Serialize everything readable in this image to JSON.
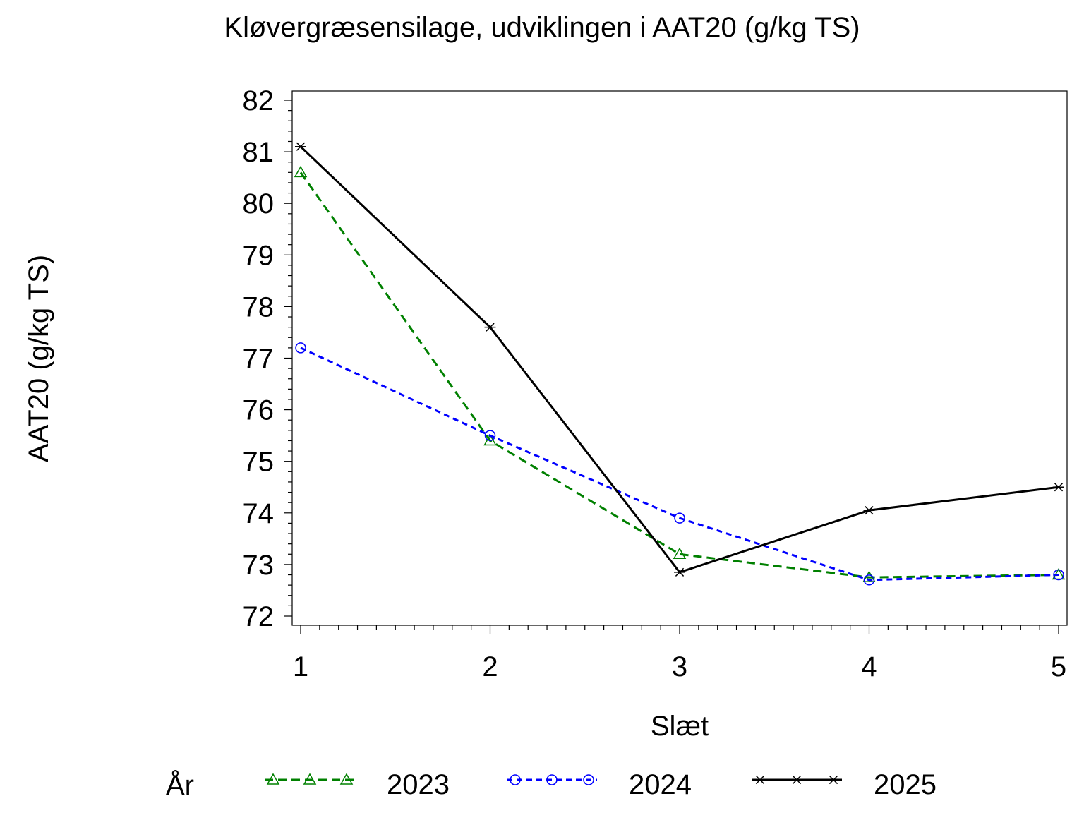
{
  "chart_data": {
    "type": "line",
    "title": "Kløvergræsensilage,  udviklingen  i  AAT20  (g/kg  TS)",
    "xlabel": "Slæt",
    "ylabel": "AAT20  (g/kg  TS)",
    "x": [
      1,
      2,
      3,
      4,
      5
    ],
    "xlim": [
      1,
      5
    ],
    "ylim": [
      72,
      82
    ],
    "yticks": [
      72,
      73,
      74,
      75,
      76,
      77,
      78,
      79,
      80,
      81,
      82
    ],
    "xticks": [
      1,
      2,
      3,
      4,
      5
    ],
    "grid": false,
    "legend": {
      "title": "År",
      "placement": "bottom"
    },
    "series": [
      {
        "name": "2023",
        "values": [
          80.6,
          75.4,
          73.2,
          72.75,
          72.8
        ],
        "color": "#008000",
        "marker": "triangle",
        "dash": "dashed"
      },
      {
        "name": "2024",
        "values": [
          77.2,
          75.5,
          73.9,
          72.7,
          72.8
        ],
        "color": "#0000ff",
        "marker": "circle",
        "dash": "dotted"
      },
      {
        "name": "2025",
        "values": [
          81.1,
          77.6,
          72.85,
          74.05,
          74.5
        ],
        "color": "#000000",
        "marker": "star",
        "dash": "solid"
      }
    ]
  }
}
